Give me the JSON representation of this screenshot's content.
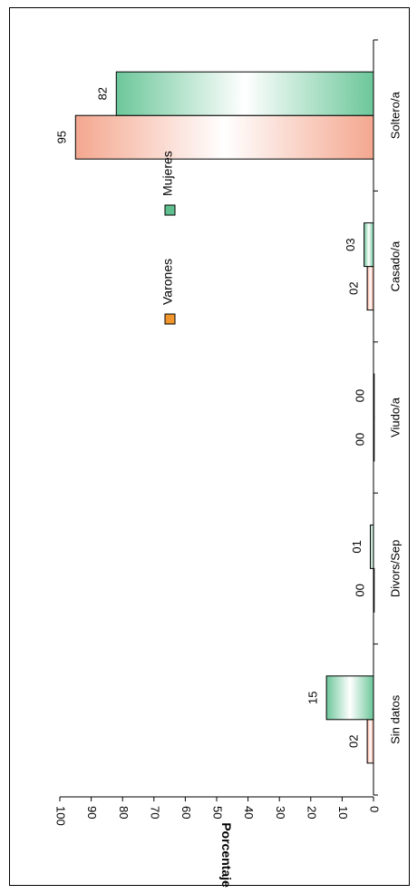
{
  "chart_data": {
    "type": "bar",
    "orientation": "vertical, page rotated 90° clockwise",
    "categories": [
      "Soltero/a",
      "Casado/a",
      "Viudo/a",
      "Divors/Sep",
      "Sin datos"
    ],
    "series": [
      {
        "name": "Varones",
        "values": [
          95,
          2,
          0,
          0,
          2
        ],
        "labels": [
          "95",
          "02",
          "00",
          "00",
          "02"
        ]
      },
      {
        "name": "Mujeres",
        "values": [
          82,
          3,
          0,
          1,
          15
        ],
        "labels": [
          "82",
          "03",
          "00",
          "01",
          "15"
        ]
      }
    ],
    "ylabel": "Porcentaje",
    "ylim": [
      0,
      100
    ],
    "yticks": [
      "0",
      "10",
      "20",
      "30",
      "40",
      "50",
      "60",
      "70",
      "80",
      "90",
      "100"
    ],
    "grid": false,
    "legend_position": "top",
    "colors": {
      "Varones_fill_edge": "#f4a78f",
      "Varones_fill_center": "#ffffff",
      "Varones_legend": "#f0962c",
      "Mujeres_fill_edge": "#6cc79a",
      "Mujeres_fill_center": "#ffffff",
      "Mujeres_legend": "#5fbf8e"
    }
  }
}
